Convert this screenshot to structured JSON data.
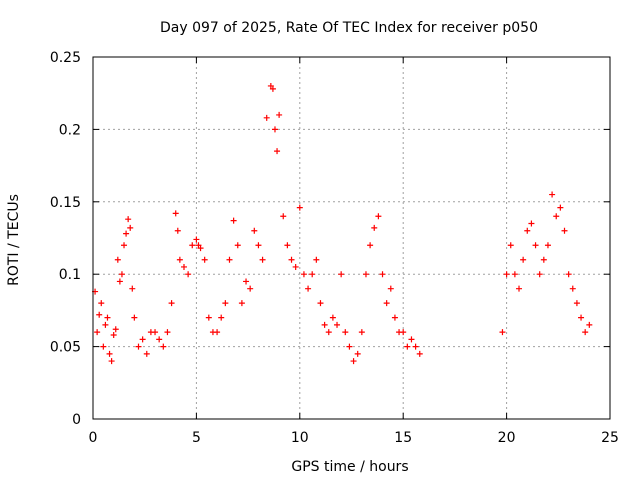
{
  "chart_data": {
    "type": "scatter",
    "title": "Day 097 of 2025, Rate Of TEC Index for receiver p050",
    "xlabel": "GPS time / hours",
    "ylabel": "ROTI / TECUs",
    "xlim": [
      0,
      25
    ],
    "ylim": [
      0,
      0.25
    ],
    "xticks": [
      0,
      5,
      10,
      15,
      20,
      25
    ],
    "yticks": [
      0,
      0.05,
      0.1,
      0.15,
      0.2,
      0.25
    ],
    "ytick_labels": [
      "0",
      "0.05",
      "0.1",
      "0.15",
      "0.2",
      "0.25"
    ],
    "grid": true,
    "marker": "+",
    "color": "#ff0000",
    "series": [
      {
        "x": [
          0.1,
          0.2,
          0.3,
          0.4,
          0.5,
          0.6,
          0.7,
          0.8,
          0.9,
          1.0,
          1.1,
          1.2,
          1.3,
          1.4,
          1.5,
          1.6,
          1.7,
          1.8,
          1.9,
          2.0,
          2.2,
          2.4,
          2.6,
          2.8,
          3.0,
          3.2,
          3.4,
          3.6,
          3.8,
          4.0,
          4.1,
          4.2,
          4.4,
          4.6,
          4.8,
          5.0,
          5.1,
          5.2,
          5.4,
          5.6,
          5.8,
          6.0,
          6.2,
          6.4,
          6.6,
          6.8,
          7.0,
          7.2,
          7.4,
          7.6,
          7.8,
          8.0,
          8.2,
          8.4,
          8.6,
          8.7,
          8.8,
          8.9,
          9.0,
          9.2,
          9.4,
          9.6,
          9.8,
          10.0,
          10.2,
          10.4,
          10.6,
          10.8,
          11.0,
          11.2,
          11.4,
          11.6,
          11.8,
          12.0,
          12.2,
          12.4,
          12.6,
          12.8,
          13.0,
          13.2,
          13.4,
          13.6,
          13.8,
          14.0,
          14.2,
          14.4,
          14.6,
          14.8,
          15.0,
          15.2,
          15.4,
          15.6,
          15.8,
          19.8,
          20.0,
          20.2,
          20.4,
          20.6,
          20.8,
          21.0,
          21.2,
          21.4,
          21.6,
          21.8,
          22.0,
          22.2,
          22.4,
          22.6,
          22.8,
          23.0,
          23.2,
          23.4,
          23.6,
          23.8,
          24.0
        ],
        "y": [
          0.088,
          0.06,
          0.072,
          0.08,
          0.05,
          0.065,
          0.07,
          0.045,
          0.04,
          0.058,
          0.062,
          0.11,
          0.095,
          0.1,
          0.12,
          0.128,
          0.138,
          0.132,
          0.09,
          0.07,
          0.05,
          0.055,
          0.045,
          0.06,
          0.06,
          0.055,
          0.05,
          0.06,
          0.08,
          0.142,
          0.13,
          0.11,
          0.105,
          0.1,
          0.12,
          0.124,
          0.12,
          0.118,
          0.11,
          0.07,
          0.06,
          0.06,
          0.07,
          0.08,
          0.11,
          0.137,
          0.12,
          0.08,
          0.095,
          0.09,
          0.13,
          0.12,
          0.11,
          0.208,
          0.23,
          0.228,
          0.2,
          0.185,
          0.21,
          0.14,
          0.12,
          0.11,
          0.105,
          0.146,
          0.1,
          0.09,
          0.1,
          0.11,
          0.08,
          0.065,
          0.06,
          0.07,
          0.065,
          0.1,
          0.06,
          0.05,
          0.04,
          0.045,
          0.06,
          0.1,
          0.12,
          0.132,
          0.14,
          0.1,
          0.08,
          0.09,
          0.07,
          0.06,
          0.06,
          0.05,
          0.055,
          0.05,
          0.045,
          0.06,
          0.1,
          0.12,
          0.1,
          0.09,
          0.11,
          0.13,
          0.135,
          0.12,
          0.1,
          0.11,
          0.12,
          0.155,
          0.14,
          0.146,
          0.13,
          0.1,
          0.09,
          0.08,
          0.07,
          0.06,
          0.065
        ]
      }
    ]
  }
}
